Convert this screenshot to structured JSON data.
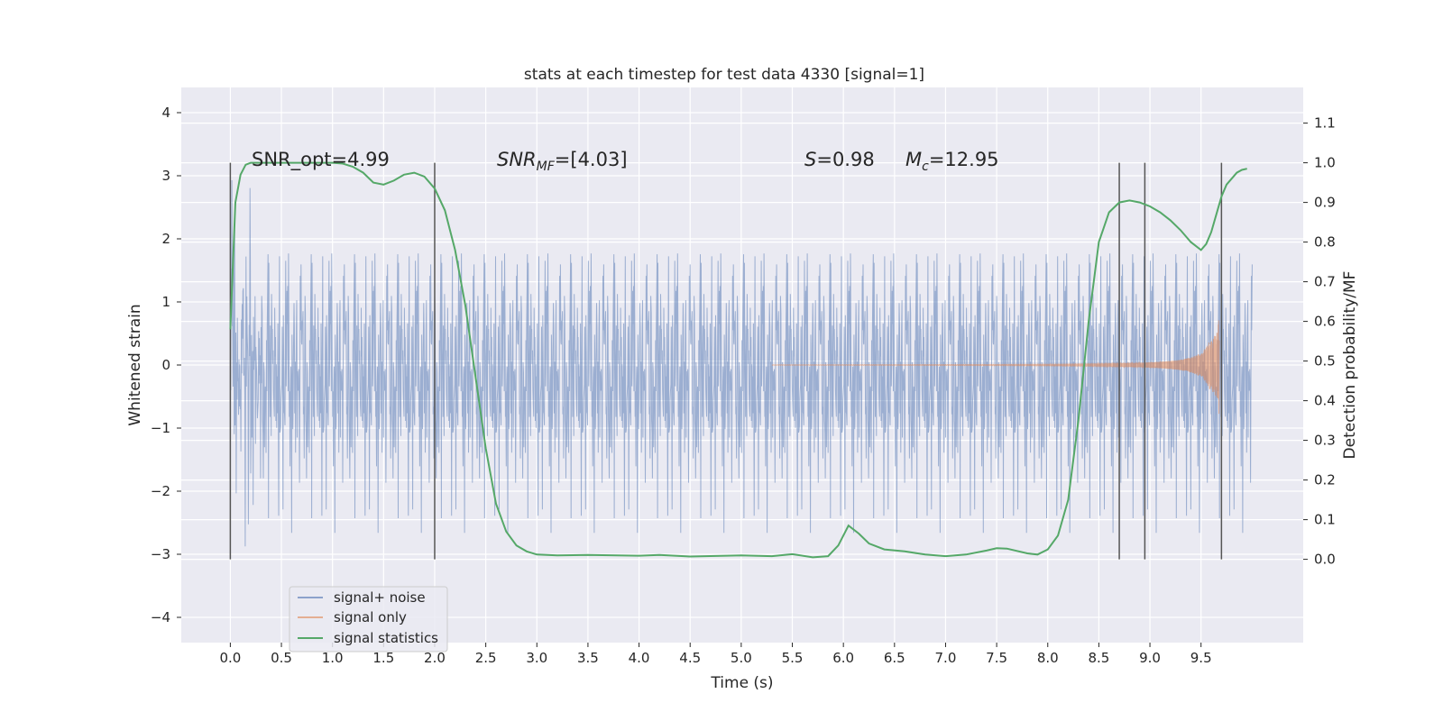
{
  "chart_data": {
    "type": "line",
    "title": "stats at each timestep for test data 4330 [signal=1]",
    "xlabel": "Time (s)",
    "ylabel": "Whitened strain",
    "ylabel_right": "Detection probability/MF",
    "xlim": [
      -0.48,
      10.5
    ],
    "ylim": [
      -4.4,
      4.4
    ],
    "ylim_right": [
      -0.21,
      1.19
    ],
    "x_ticks": [
      "0.0",
      "0.5",
      "1.0",
      "1.5",
      "2.0",
      "2.5",
      "3.0",
      "3.5",
      "4.0",
      "4.5",
      "5.0",
      "5.5",
      "6.0",
      "6.5",
      "7.0",
      "7.5",
      "8.0",
      "8.5",
      "9.0",
      "9.5"
    ],
    "y_ticks": [
      "4",
      "3",
      "2",
      "1",
      "0",
      "−1",
      "−2",
      "−3",
      "−4"
    ],
    "y_right_ticks": [
      "1.1",
      "1.0",
      "0.9",
      "0.8",
      "0.7",
      "0.6",
      "0.5",
      "0.4",
      "0.3",
      "0.2",
      "0.1",
      "0.0"
    ],
    "annotations": {
      "snr_opt": "SNR_opt=4.99",
      "snr_mf_italic": "SNR",
      "snr_mf_sub": "MF",
      "snr_mf_rest": "=[4.03]",
      "s_italic": "S",
      "s_rest": "=0.98",
      "mc_italic": "M",
      "mc_sub": "c",
      "mc_rest": "=12.95"
    },
    "grid": true,
    "legend_position": "lower-left",
    "series": [
      {
        "name": "signal+ noise",
        "color": "#4c72b0",
        "kind": "noise",
        "x_range": [
          0,
          10
        ],
        "amplitude_approx": 2.0
      },
      {
        "name": "signal only",
        "color": "#dd8452",
        "kind": "chirp",
        "x_range": [
          5.3,
          9.68
        ],
        "peak_amplitude": 0.95
      },
      {
        "name": "signal statistics",
        "color": "#55a868",
        "axis": "right",
        "x": [
          0,
          0.05,
          0.1,
          0.15,
          0.2,
          0.3,
          0.4,
          0.6,
          0.8,
          1.0,
          1.1,
          1.2,
          1.3,
          1.4,
          1.5,
          1.6,
          1.7,
          1.8,
          1.9,
          2.0,
          2.1,
          2.2,
          2.3,
          2.4,
          2.5,
          2.6,
          2.7,
          2.8,
          2.9,
          3.0,
          3.2,
          3.5,
          4.0,
          4.2,
          4.5,
          5.0,
          5.3,
          5.5,
          5.7,
          5.85,
          5.95,
          6.05,
          6.15,
          6.25,
          6.4,
          6.6,
          6.8,
          7.0,
          7.2,
          7.4,
          7.5,
          7.6,
          7.8,
          7.9,
          8.0,
          8.1,
          8.2,
          8.3,
          8.4,
          8.5,
          8.6,
          8.7,
          8.8,
          8.9,
          9.0,
          9.1,
          9.2,
          9.3,
          9.4,
          9.5,
          9.55,
          9.6,
          9.65,
          9.7,
          9.75,
          9.8,
          9.85,
          9.9,
          9.95
        ],
        "y": [
          0.58,
          0.9,
          0.97,
          0.995,
          1.0,
          1.0,
          1.0,
          1.0,
          1.0,
          1.0,
          0.998,
          0.99,
          0.975,
          0.95,
          0.945,
          0.955,
          0.97,
          0.975,
          0.965,
          0.935,
          0.88,
          0.78,
          0.64,
          0.46,
          0.28,
          0.14,
          0.07,
          0.035,
          0.02,
          0.012,
          0.01,
          0.011,
          0.009,
          0.011,
          0.007,
          0.01,
          0.008,
          0.013,
          0.005,
          0.008,
          0.035,
          0.085,
          0.065,
          0.04,
          0.025,
          0.02,
          0.012,
          0.008,
          0.012,
          0.022,
          0.028,
          0.027,
          0.015,
          0.012,
          0.025,
          0.06,
          0.15,
          0.35,
          0.6,
          0.8,
          0.875,
          0.9,
          0.905,
          0.9,
          0.89,
          0.875,
          0.855,
          0.83,
          0.8,
          0.78,
          0.795,
          0.825,
          0.87,
          0.915,
          0.945,
          0.96,
          0.975,
          0.982,
          0.985
        ]
      }
    ],
    "vertical_markers": [
      0.0,
      2.0,
      8.7,
      8.95,
      9.7
    ]
  }
}
